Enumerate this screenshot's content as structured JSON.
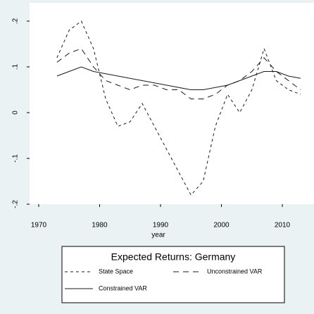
{
  "chart_data": {
    "type": "line",
    "x_label": "year",
    "legend_title": "Expected Returns: Germany",
    "x": [
      1973,
      1975,
      1977,
      1979,
      1981,
      1983,
      1985,
      1987,
      1989,
      1991,
      1993,
      1995,
      1997,
      1999,
      2001,
      2003,
      2005,
      2007,
      2009,
      2011,
      2013
    ],
    "series": [
      {
        "name": "State Space",
        "color": "#1a1a1a",
        "linestyle": "short-dash",
        "values": [
          0.12,
          0.18,
          0.2,
          0.14,
          0.03,
          -0.03,
          -0.02,
          0.02,
          -0.03,
          -0.08,
          -0.13,
          -0.18,
          -0.15,
          -0.03,
          0.04,
          0.0,
          0.05,
          0.14,
          0.07,
          0.05,
          0.04
        ]
      },
      {
        "name": "Unconstrained VAR",
        "color": "#1a1a1a",
        "linestyle": "long-dash",
        "values": [
          0.11,
          0.13,
          0.14,
          0.1,
          0.07,
          0.06,
          0.05,
          0.06,
          0.06,
          0.05,
          0.05,
          0.03,
          0.03,
          0.04,
          0.06,
          0.07,
          0.09,
          0.12,
          0.09,
          0.07,
          0.05
        ]
      },
      {
        "name": "Constrained VAR",
        "color": "#1a1a1a",
        "linestyle": "solid",
        "values": [
          0.08,
          0.09,
          0.1,
          0.09,
          0.085,
          0.08,
          0.075,
          0.07,
          0.065,
          0.06,
          0.055,
          0.05,
          0.05,
          0.055,
          0.06,
          0.07,
          0.08,
          0.09,
          0.09,
          0.08,
          0.075
        ]
      }
    ],
    "xlim": [
      1968.5,
      2015.2
    ],
    "xticks": [
      1970,
      1980,
      1990,
      2000,
      2010
    ],
    "ylim": [
      -0.2,
      0.24
    ],
    "yticks": [
      {
        "value": -0.2,
        "label": "-.2"
      },
      {
        "value": -0.1,
        "label": "-.1"
      },
      {
        "value": 0,
        "label": "0"
      },
      {
        "value": 0.1,
        "label": ".1"
      },
      {
        "value": 0.2,
        "label": ".2"
      }
    ],
    "grid": false
  }
}
